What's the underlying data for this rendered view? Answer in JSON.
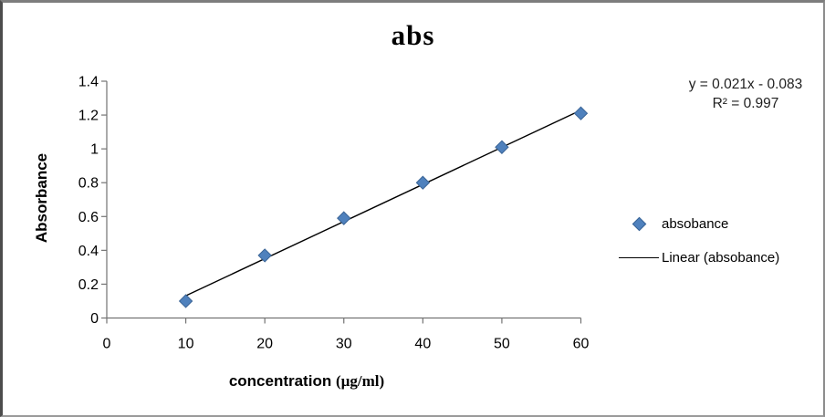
{
  "window": {
    "background": "#ffffff",
    "border_color": "#7d7d7d"
  },
  "chart_data": {
    "type": "scatter",
    "title": "abs",
    "x_axis": {
      "label": "concentration (µg/ml)",
      "label_parts": [
        "concentration ",
        "(µg/ml)"
      ],
      "ticks": [
        0,
        10,
        20,
        30,
        40,
        50,
        60
      ],
      "range": [
        0,
        60
      ]
    },
    "y_axis": {
      "label": "Absorbance",
      "ticks": [
        0,
        0.2,
        0.4,
        0.6,
        0.8,
        1,
        1.2,
        1.4
      ],
      "range": [
        0,
        1.4
      ]
    },
    "series": [
      {
        "name": "absobance",
        "marker": "diamond",
        "color": "#4f81bd",
        "marker_edge_color": "#3a6496",
        "x": [
          10,
          20,
          30,
          40,
          50,
          60
        ],
        "y": [
          0.1,
          0.37,
          0.59,
          0.8,
          1.01,
          1.21
        ]
      }
    ],
    "trendline": {
      "label": "Linear (absobance)",
      "color": "#000000",
      "equation": "y = 0.021x - 0.083",
      "r_squared": "R² = 0.997"
    },
    "legend": {
      "position": "right",
      "entries": [
        "absobance",
        "Linear (absobance)"
      ]
    },
    "grid": false,
    "axis_color": "#737373",
    "tick_label_color": "#000000"
  }
}
